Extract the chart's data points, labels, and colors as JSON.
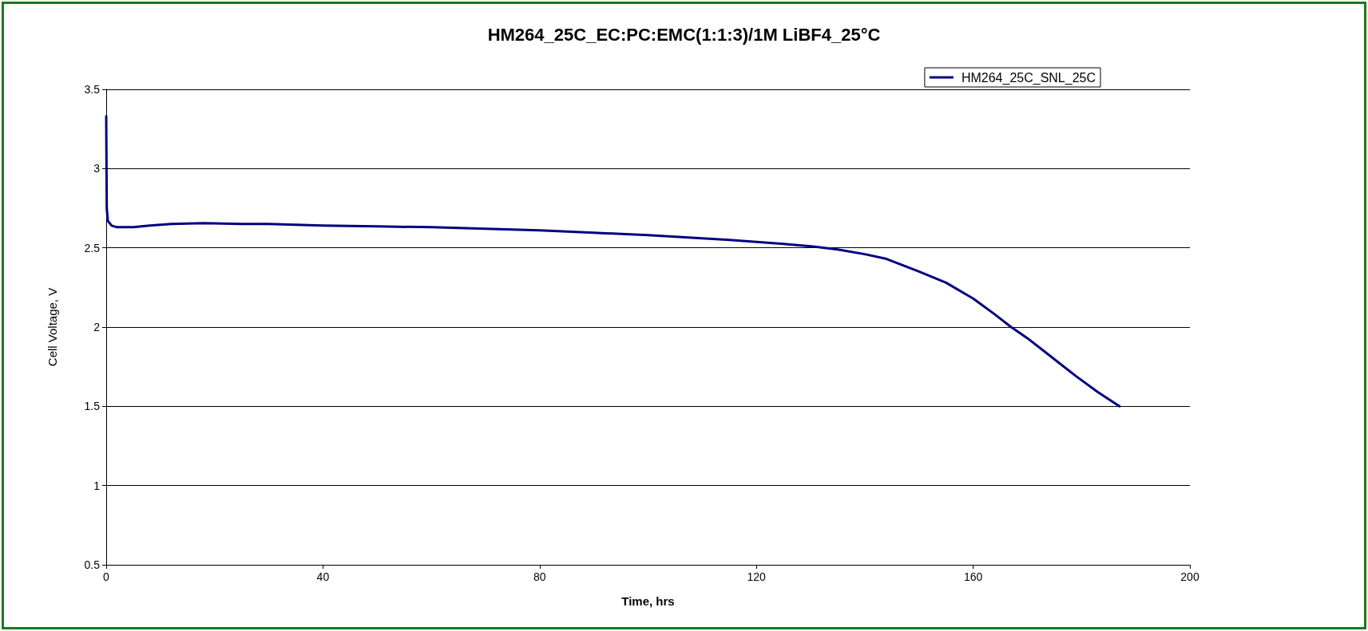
{
  "chart_data": {
    "type": "line",
    "title": "HM264_25C_EC:PC:EMC(1:1:3)/1M LiBF4_25°C",
    "xlabel": "Time, hrs",
    "ylabel": "Cell Voltage, V",
    "x": [
      0,
      0.1,
      0.3,
      1,
      2,
      5,
      8,
      12,
      18,
      25,
      30,
      40,
      50,
      60,
      70,
      80,
      90,
      100,
      105,
      115,
      125,
      130,
      135,
      140,
      144,
      150,
      155,
      160,
      164,
      167,
      170,
      173,
      176,
      179,
      183,
      187
    ],
    "series": [
      {
        "name": "HM264_25C_SNL_25C",
        "color": "#000080",
        "values": [
          3.33,
          2.75,
          2.67,
          2.64,
          2.63,
          2.63,
          2.64,
          2.65,
          2.655,
          2.65,
          2.65,
          2.64,
          2.635,
          2.63,
          2.62,
          2.61,
          2.595,
          2.58,
          2.57,
          2.55,
          2.525,
          2.51,
          2.49,
          2.46,
          2.43,
          2.35,
          2.28,
          2.18,
          2.08,
          2.0,
          1.93,
          1.85,
          1.77,
          1.69,
          1.59,
          1.5
        ]
      }
    ],
    "xlim": [
      0,
      200
    ],
    "xticks": [
      0,
      40,
      80,
      120,
      160,
      200
    ],
    "ylim": [
      0.5,
      3.5
    ],
    "yticks": [
      0.5,
      1,
      1.5,
      2,
      2.5,
      3,
      3.5
    ],
    "grid": "y",
    "legend": "top right",
    "marker": "none",
    "line_style": "solid"
  }
}
